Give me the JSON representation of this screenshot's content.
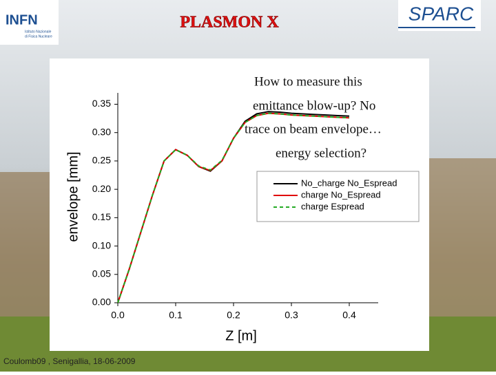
{
  "header": {
    "title": "PLASMON X",
    "infn": "INFN",
    "infn_subtitle": [
      "Istituto Nazionale",
      "di Fisica Nucleare"
    ],
    "sparc": "SPARC"
  },
  "footer": "Coulomb09 , Senigallia, 18-06-2009",
  "chart_data": {
    "type": "line",
    "x_label": "Z [m]",
    "y_label": "envelope [mm]",
    "annotations": [
      "How to measure this",
      "emittance blow-up?  No",
      "trace on beam envelope…",
      "energy selection?"
    ],
    "x": [
      0,
      0.02,
      0.04,
      0.06,
      0.08,
      0.1,
      0.12,
      0.14,
      0.16,
      0.18,
      0.2,
      0.22,
      0.24,
      0.26,
      0.28,
      0.3,
      0.32,
      0.34,
      0.36,
      0.38,
      0.4
    ],
    "series": [
      {
        "name": "No_charge No_Espread",
        "color": "#000000",
        "style": "solid",
        "values": [
          0,
          0.06,
          0.125,
          0.19,
          0.25,
          0.27,
          0.26,
          0.24,
          0.232,
          0.25,
          0.29,
          0.32,
          0.333,
          0.337,
          0.336,
          0.334,
          0.333,
          0.332,
          0.331,
          0.33,
          0.329
        ]
      },
      {
        "name": "charge No_Espread",
        "color": "#e00000",
        "style": "solid",
        "values": [
          0,
          0.06,
          0.125,
          0.19,
          0.25,
          0.27,
          0.26,
          0.24,
          0.233,
          0.25,
          0.29,
          0.318,
          0.33,
          0.334,
          0.333,
          0.331,
          0.33,
          0.329,
          0.328,
          0.327,
          0.326
        ]
      },
      {
        "name": "charge Espread",
        "color": "#22aa22",
        "style": "dashed",
        "values": [
          0,
          0.06,
          0.125,
          0.19,
          0.25,
          0.27,
          0.26,
          0.241,
          0.234,
          0.251,
          0.29,
          0.318,
          0.33,
          0.334,
          0.333,
          0.331,
          0.33,
          0.329,
          0.328,
          0.327,
          0.326
        ]
      }
    ],
    "xlim": [
      0,
      0.45
    ],
    "ylim": [
      0,
      0.37
    ],
    "xticks": [
      {
        "value": 0,
        "label": "0.0"
      },
      0.1,
      0.2,
      0.3,
      0.4
    ],
    "yticks": [
      {
        "value": 0,
        "label": "0.00"
      },
      0.05,
      {
        "value": 0.1,
        "label": "0.10"
      },
      0.15,
      {
        "value": 0.2,
        "label": "0.20"
      },
      0.25,
      {
        "value": 0.3,
        "label": "0.30"
      },
      0.35
    ]
  }
}
